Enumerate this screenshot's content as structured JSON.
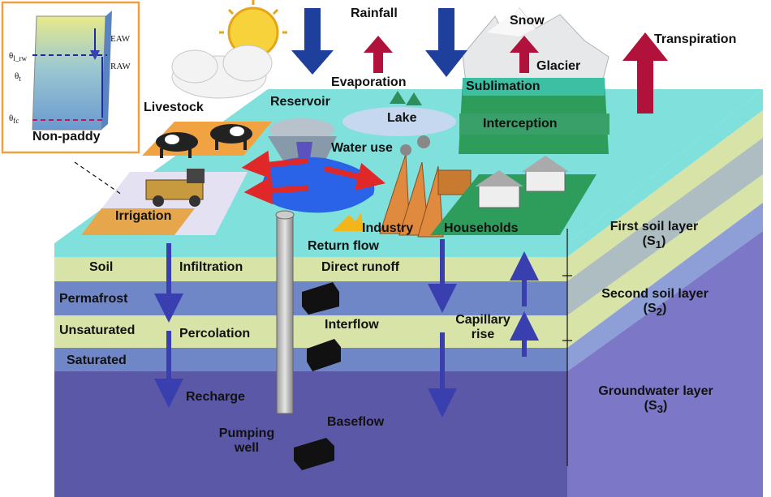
{
  "atmosphere": {
    "rainfall": "Rainfall",
    "snow": "Snow",
    "glacier": "Glacier",
    "transpiration": "Transpiration",
    "evaporation": "Evaporation",
    "sublimation": "Sublimation",
    "interception": "Interception"
  },
  "surface": {
    "reservoir": "Reservoir",
    "lake": "Lake",
    "livestock": "Livestock",
    "water_use": "Water use",
    "irrigation": "Irrigation",
    "industry": "Industry",
    "households": "Households",
    "return_flow": "Return flow",
    "direct_runoff": "Direct runoff"
  },
  "subsurface": {
    "soil": "Soil",
    "permafrost": "Permafrost",
    "unsaturated": "Unsaturated",
    "saturated": "Saturated",
    "infiltration": "Infiltration",
    "percolation": "Percolation",
    "recharge": "Recharge",
    "interflow": "Interflow",
    "capillary_rise_1": "Capillary",
    "capillary_rise_2": "rise",
    "baseflow": "Baseflow",
    "pumping_well_1": "Pumping",
    "pumping_well_2": "well"
  },
  "layers": {
    "first_1": "First soil layer",
    "first_2a": "(S",
    "first_2b": "1",
    "first_2c": ")",
    "second_1": "Second soil layer",
    "second_2a": "(S",
    "second_2b": "2",
    "second_2c": ")",
    "ground_1": "Groundwater layer",
    "ground_2a": "(S",
    "ground_2b": "3",
    "ground_2c": ")"
  },
  "inset": {
    "title": "Non-paddy",
    "eaw": "EAW",
    "raw": "RAW",
    "theta_fc": "θ",
    "theta_fc_sub": "fc",
    "theta_t": "θ",
    "theta_t_sub": "t",
    "theta_lrw": "θ",
    "theta_lrw_sub": "l_rw"
  },
  "colors": {
    "surface": "#7fe0dc",
    "soil": "#d8e3a8",
    "permafrost": "#6f86c7",
    "unsaturated": "#d8e3a8",
    "saturated": "#6f86c7",
    "groundwater": "#5c58a8",
    "rainfall_arrow": "#1f3f9c",
    "transpiration_arrow": "#b0123b",
    "use_arrow": "#e02828"
  }
}
